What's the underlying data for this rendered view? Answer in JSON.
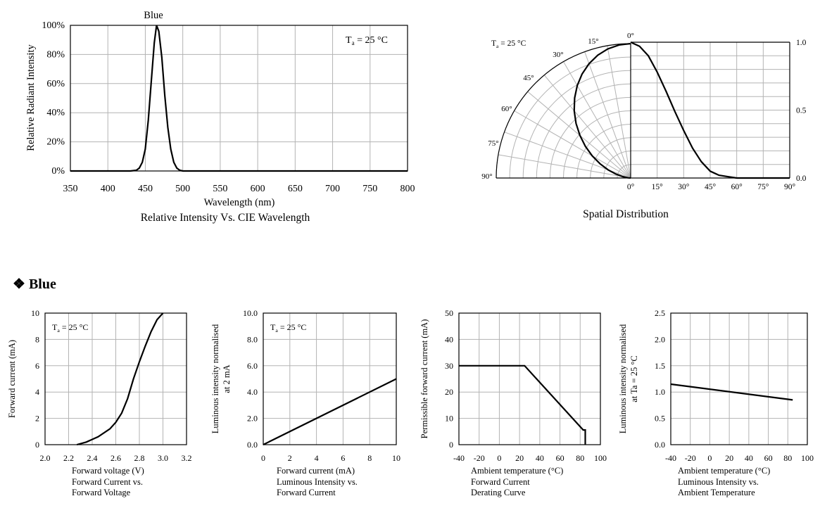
{
  "section": {
    "bullet": "❖",
    "title": "Blue"
  },
  "chart_data": [
    {
      "id": "spectrum",
      "type": "line",
      "title": "Blue",
      "caption": "Relative Intensity Vs. CIE Wavelength",
      "xlabel": "Wavelength (nm)",
      "ylabel": "Relative Radiant Intensity",
      "xlim": [
        350,
        800
      ],
      "ylim": [
        0,
        100
      ],
      "grid": true,
      "annotation": "T",
      "annotation_sub": "a",
      "annotation_rest": " = 25 °C",
      "xticks": [
        "350",
        "400",
        "450",
        "500",
        "550",
        "600",
        "650",
        "700",
        "750",
        "800"
      ],
      "yticks": [
        "0%",
        "20%",
        "40%",
        "60%",
        "80%",
        "100%"
      ],
      "series": [
        {
          "x": [
            350,
            430,
            438,
            442,
            446,
            450,
            454,
            458,
            462,
            465,
            468,
            472,
            476,
            480,
            484,
            488,
            492,
            496,
            500,
            504,
            800
          ],
          "y": [
            0,
            0,
            0.5,
            2,
            6,
            15,
            35,
            62,
            88,
            100,
            96,
            78,
            52,
            30,
            15,
            6,
            2,
            0.5,
            0,
            0,
            0
          ]
        }
      ]
    },
    {
      "id": "spatial",
      "type": "line",
      "caption": "Spatial Distribution",
      "annotation": "T",
      "annotation_sub": "a",
      "annotation_rest": " = 25 °C",
      "angle_labels": [
        "0°",
        "15°",
        "30°",
        "45°",
        "60°",
        "75°",
        "90°"
      ],
      "yticks": [
        "0.0",
        "0.5",
        "1.0"
      ],
      "xticks": [
        "0°",
        "15°",
        "30°",
        "45°",
        "60°",
        "75°",
        "90°"
      ],
      "xlim": [
        0,
        90
      ],
      "ylim": [
        0,
        1
      ],
      "grid": true,
      "series": [
        {
          "x": [
            0,
            5,
            10,
            15,
            20,
            25,
            30,
            35,
            40,
            45,
            50,
            55,
            60,
            70,
            80,
            90
          ],
          "y": [
            1.0,
            0.97,
            0.9,
            0.78,
            0.64,
            0.49,
            0.35,
            0.22,
            0.12,
            0.05,
            0.02,
            0.01,
            0,
            0,
            0,
            0
          ]
        }
      ],
      "polar": [
        [
          0,
          1.0
        ],
        [
          10,
          0.97
        ],
        [
          20,
          0.9
        ],
        [
          30,
          0.8
        ],
        [
          40,
          0.66
        ],
        [
          50,
          0.5
        ],
        [
          60,
          0.34
        ],
        [
          70,
          0.18
        ],
        [
          80,
          0.06
        ],
        [
          90,
          0
        ]
      ]
    },
    {
      "id": "iv",
      "type": "line",
      "caption_lines": [
        "Forward Current vs.",
        "Forward Voltage"
      ],
      "xlabel": "Forward voltage (V)",
      "ylabel": "Forward current (mA)",
      "xlim": [
        2.0,
        3.2
      ],
      "ylim": [
        0,
        10
      ],
      "grid": true,
      "annotation": "T",
      "annotation_sub": "a",
      "annotation_rest": " = 25 °C",
      "xticks": [
        "2.0",
        "2.2",
        "2.4",
        "2.6",
        "2.8",
        "3.0",
        "3.2"
      ],
      "yticks": [
        "0",
        "2",
        "4",
        "6",
        "8",
        "10"
      ],
      "series": [
        {
          "x": [
            2.27,
            2.35,
            2.45,
            2.55,
            2.6,
            2.65,
            2.7,
            2.75,
            2.8,
            2.85,
            2.9,
            2.95,
            3.0
          ],
          "y": [
            0,
            0.2,
            0.6,
            1.2,
            1.7,
            2.4,
            3.5,
            5.0,
            6.3,
            7.5,
            8.6,
            9.5,
            10
          ]
        }
      ]
    },
    {
      "id": "li",
      "type": "line",
      "caption_lines": [
        "Luminous Intensity vs.",
        "Forward Current"
      ],
      "xlabel": "Forward current (mA)",
      "ylabel_lines": [
        "Luminous intensity normalised",
        "at 2 mA"
      ],
      "xlim": [
        0,
        10
      ],
      "ylim": [
        0,
        10
      ],
      "grid": true,
      "annotation": "T",
      "annotation_sub": "a",
      "annotation_rest": " = 25 °C",
      "xticks": [
        "0",
        "2",
        "4",
        "6",
        "8",
        "10"
      ],
      "yticks": [
        "0.0",
        "2.0",
        "4.0",
        "6.0",
        "8.0",
        "10.0"
      ],
      "series": [
        {
          "x": [
            0,
            10
          ],
          "y": [
            0,
            5
          ]
        }
      ]
    },
    {
      "id": "derating",
      "type": "line",
      "caption_lines": [
        "Forward Current",
        "Derating  Curve"
      ],
      "xlabel": "Ambient temperature (°C)",
      "ylabel": "Permissible forward current (mA)",
      "xlim": [
        -40,
        100
      ],
      "ylim": [
        0,
        50
      ],
      "grid": true,
      "xticks": [
        "-40",
        "-20",
        "0",
        "20",
        "40",
        "60",
        "80",
        "100"
      ],
      "yticks": [
        "0",
        "10",
        "20",
        "30",
        "40",
        "50"
      ],
      "series": [
        {
          "x": [
            -40,
            25,
            83,
            83,
            85,
            85
          ],
          "y": [
            30,
            30,
            5.6,
            5.6,
            5.6,
            0
          ]
        }
      ]
    },
    {
      "id": "lt",
      "type": "line",
      "caption_lines": [
        "Luminous Intensity vs.",
        "Ambient Temperature"
      ],
      "xlabel": "Ambient temperature (°C)",
      "ylabel_lines": [
        "Luminous intensity normalised",
        "at Ta = 25 °C"
      ],
      "xlim": [
        -40,
        100
      ],
      "ylim": [
        0,
        2.5
      ],
      "grid": true,
      "xticks": [
        "-40",
        "-20",
        "0",
        "20",
        "40",
        "60",
        "80",
        "100"
      ],
      "yticks": [
        "0.0",
        "0.5",
        "1.0",
        "1.5",
        "2.0",
        "2.5"
      ],
      "series": [
        {
          "x": [
            -40,
            85
          ],
          "y": [
            1.15,
            0.85
          ]
        }
      ]
    }
  ]
}
